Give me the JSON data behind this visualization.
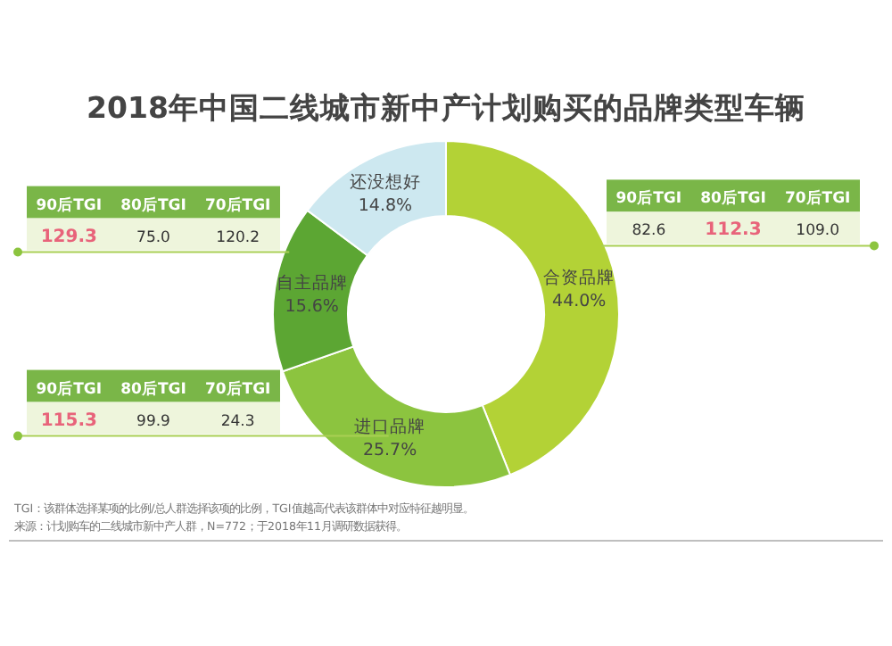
{
  "chart_data": {
    "type": "donut",
    "title": "2018年中国二线城市新中产计划购买的品牌类型车辆",
    "categories": [
      "合资品牌",
      "进口品牌",
      "自主品牌",
      "还没想好"
    ],
    "values": [
      44.0,
      25.7,
      15.6,
      14.8
    ],
    "colors": [
      "#b3d236",
      "#8cc43f",
      "#5ca633",
      "#cde8f0"
    ],
    "value_labels": [
      "44.0%",
      "25.7%",
      "15.6%",
      "14.8%"
    ],
    "annotations": [
      {
        "text": "90后TGI",
        "x": "自主品牌"
      },
      {
        "text": "80后TGI",
        "x": "自主品牌"
      },
      {
        "text": "70后TGI",
        "x": "自主品牌"
      },
      {
        "text": "129.3",
        "x": "自主品牌"
      },
      {
        "text": "75.0",
        "x": "自主品牌"
      },
      {
        "text": "120.2",
        "x": "自主品牌"
      },
      {
        "text": "90后TGI",
        "x": "合资品牌"
      },
      {
        "text": "80后TGI",
        "x": "合资品牌"
      },
      {
        "text": "70后TGI",
        "x": "合资品牌"
      },
      {
        "text": "82.6",
        "x": "合资品牌"
      },
      {
        "text": "112.3",
        "x": "合资品牌"
      },
      {
        "text": "109.0",
        "x": "合资品牌"
      },
      {
        "text": "90后TGI",
        "x": "进口品牌"
      },
      {
        "text": "80后TGI",
        "x": "进口品牌"
      },
      {
        "text": "70后TGI",
        "x": "进口品牌"
      },
      {
        "text": "115.3",
        "x": "进口品牌"
      },
      {
        "text": "99.9",
        "x": "进口品牌"
      },
      {
        "text": "24.3",
        "x": "进口品牌"
      },
      "TGI：该群体选择某项的比例/总人群选择该项的比例，TGI值越高代表该群体中对应特征越明显。",
      "来源：计划购车的二线城市新中产人群，N=772；于2018年11月调研数据获得。"
    ]
  }
}
